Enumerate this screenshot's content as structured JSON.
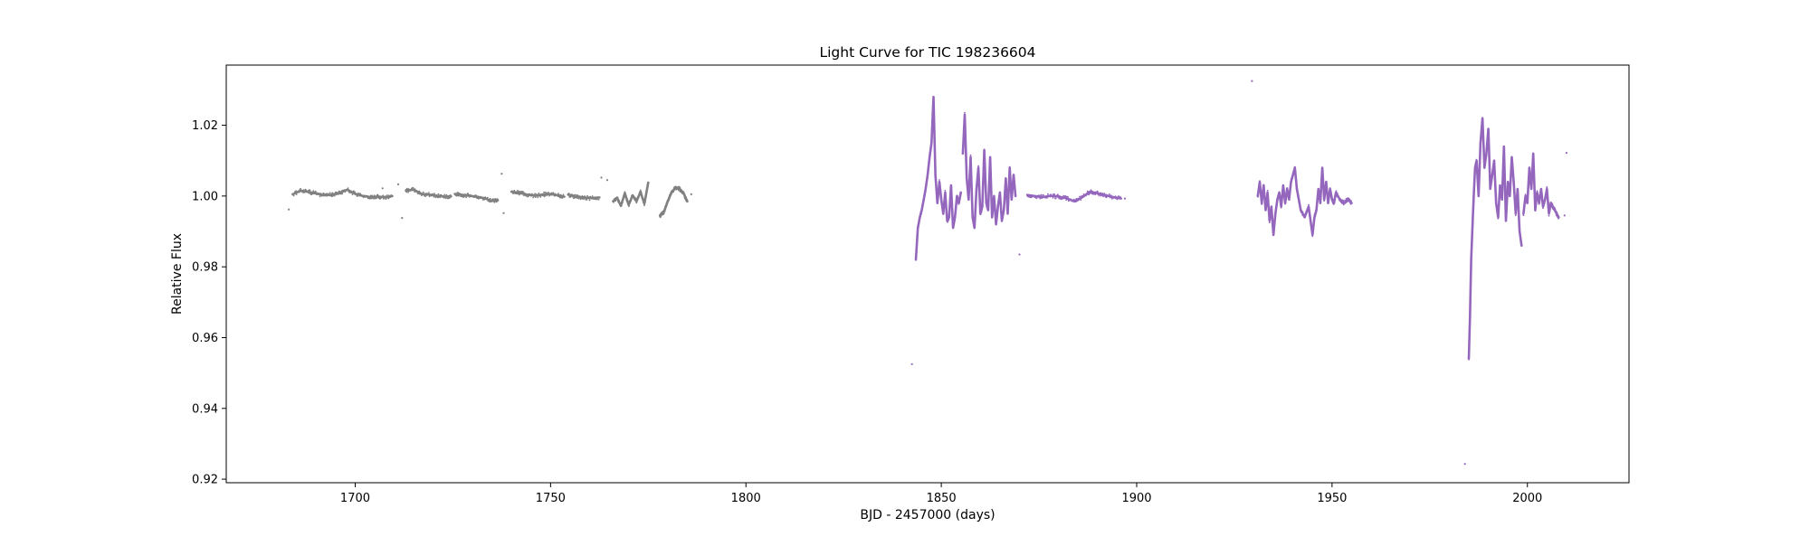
{
  "chart_data": {
    "type": "scatter",
    "title": "Light Curve for TIC 198236604",
    "xlabel": "BJD - 2457000 (days)",
    "ylabel": "Relative Flux",
    "xlim": [
      1667,
      2026
    ],
    "ylim": [
      0.919,
      1.037
    ],
    "xticks": [
      1700,
      1750,
      1800,
      1850,
      1900,
      1950,
      2000
    ],
    "yticks": [
      0.92,
      0.94,
      0.96,
      0.98,
      1.0,
      1.02
    ],
    "xtick_labels": [
      "1700",
      "1750",
      "1800",
      "1850",
      "1900",
      "1950",
      "2000"
    ],
    "ytick_labels": [
      "0.92",
      "0.94",
      "0.96",
      "0.98",
      "1.00",
      "1.02"
    ],
    "grid": false,
    "legend": "none",
    "series": [
      {
        "color": "#808080",
        "segments": [
          {
            "x": [
              1684,
              1686,
              1688,
              1690,
              1692,
              1694,
              1696,
              1698,
              1700,
              1702,
              1704,
              1706,
              1708,
              1709.5
            ],
            "y": [
              1.0005,
              1.0015,
              1.0012,
              1.0007,
              1.0002,
              1.0004,
              1.0009,
              1.0018,
              1.0006,
              1.0,
              0.9997,
              0.9998,
              0.9996,
              1.0
            ]
          },
          {
            "x": [
              1713,
              1715,
              1717,
              1719,
              1721,
              1723,
              1724.5
            ],
            "y": [
              1.0015,
              1.0018,
              1.0006,
              1.0004,
              1.0001,
              0.9998,
              0.9999
            ]
          },
          {
            "x": [
              1725.5,
              1727,
              1729,
              1731,
              1733,
              1735,
              1736.5
            ],
            "y": [
              1.0006,
              1.0004,
              1.0001,
              0.9998,
              0.9994,
              0.9986,
              0.9988
            ]
          },
          {
            "x": [
              1740,
              1742,
              1744,
              1746,
              1748,
              1750,
              1752,
              1753.5
            ],
            "y": [
              1.0012,
              1.0009,
              1.0004,
              1.0001,
              1.0004,
              1.0006,
              1.0002,
              0.9998
            ]
          },
          {
            "x": [
              1754.5,
              1756,
              1758,
              1760,
              1762.5
            ],
            "y": [
              1.0004,
              0.9998,
              0.9997,
              0.9994,
              0.9996
            ]
          },
          {
            "x": [
              1766,
              1767,
              1768,
              1769,
              1770,
              1771,
              1772,
              1773,
              1774,
              1775
            ],
            "y": [
              0.9985,
              0.9995,
              0.9972,
              1.0008,
              0.9975,
              1.0002,
              0.9985,
              1.0012,
              0.9978,
              1.0038
            ]
          },
          {
            "x": [
              1778,
              1779,
              1780,
              1781,
              1782,
              1783,
              1784,
              1785
            ],
            "y": [
              0.9945,
              0.9955,
              0.9985,
              1.0012,
              1.0023,
              1.002,
              1.0008,
              0.9985
            ]
          }
        ],
        "outliers": [
          {
            "x": [
              1683,
              1707,
              1711,
              1712,
              1737.5,
              1738,
              1763,
              1764.5,
              1786
            ],
            "y": [
              0.9962,
              1.0022,
              1.0033,
              0.9938,
              1.0063,
              0.9952,
              1.0052,
              1.0045,
              1.0005
            ]
          }
        ]
      },
      {
        "color": "#9467bd",
        "segments": [
          {
            "x": [
              1843.5,
              1844,
              1844.5,
              1845,
              1845.5,
              1846,
              1846.5,
              1847,
              1847.5,
              1848,
              1848.5,
              1849,
              1849.5,
              1850,
              1850.5,
              1851,
              1851.5,
              1852,
              1852.5,
              1853,
              1853.5,
              1854,
              1854.5,
              1855
            ],
            "y": [
              0.982,
              0.991,
              0.994,
              0.996,
              0.999,
              1.002,
              1.006,
              1.011,
              1.015,
              1.028,
              1.006,
              0.998,
              1.004,
              0.999,
              0.995,
              1.001,
              0.993,
              0.994,
              1.003,
              0.991,
              0.994,
              1.0,
              0.998,
              1.001
            ]
          },
          {
            "x": [
              1855.5,
              1856,
              1856.5,
              1857,
              1857.5,
              1858,
              1858.5,
              1859,
              1859.5,
              1860,
              1860.5,
              1861,
              1861.5,
              1862,
              1862.5,
              1863,
              1863.5,
              1864,
              1864.5,
              1865,
              1865.5,
              1866,
              1866.5,
              1867,
              1867.5,
              1868,
              1868.5,
              1869
            ],
            "y": [
              1.012,
              1.023,
              1.005,
              0.999,
              1.011,
              0.994,
              0.991,
              1.002,
              1.008,
              0.995,
              0.997,
              1.013,
              0.998,
              0.996,
              1.011,
              0.994,
              1.0,
              0.992,
              0.997,
              1.001,
              0.993,
              0.996,
              1.005,
              0.995,
              1.008,
              0.999,
              1.006,
              1.0
            ]
          },
          {
            "x": [
              1872,
              1874,
              1876,
              1878,
              1880,
              1882,
              1884,
              1886,
              1888,
              1890,
              1892,
              1894,
              1896
            ],
            "y": [
              1.0003,
              1.0,
              0.9997,
              1.0001,
              0.9998,
              0.9994,
              0.9985,
              0.9996,
              1.0012,
              1.0008,
              1.0002,
              0.9997,
              0.9993
            ]
          },
          {
            "x": [
              1931,
              1931.5,
              1932,
              1932.5,
              1933,
              1933.5,
              1934,
              1934.5,
              1935,
              1935.5,
              1936,
              1936.5,
              1937,
              1937.5,
              1938,
              1938.5,
              1939,
              1939.5,
              1940,
              1940.5,
              1941
            ],
            "y": [
              1.0,
              1.004,
              0.998,
              1.003,
              0.996,
              1.001,
              0.993,
              0.997,
              0.989,
              0.995,
              0.999,
              1.001,
              0.997,
              1.003,
              0.998,
              1.002,
              0.999,
              1.004,
              1.006,
              1.008,
              1.002
            ]
          },
          {
            "x": [
              1941,
              1942,
              1943,
              1944,
              1945,
              1945.5,
              1946,
              1946.5,
              1947,
              1947.5,
              1948,
              1948.5,
              1949,
              1949.5,
              1950,
              1950.5,
              1951,
              1952,
              1953,
              1954,
              1955
            ],
            "y": [
              1.002,
              0.996,
              0.994,
              0.997,
              0.989,
              0.994,
              0.996,
              1.002,
              0.998,
              1.008,
              0.999,
              1.004,
              0.998,
              1.002,
              0.999,
              0.998,
              1.001,
              0.999,
              0.998,
              0.999,
              0.998
            ]
          },
          {
            "x": [
              1985,
              1985.3,
              1985.6,
              1986,
              1986.3,
              1986.6,
              1987,
              1987.5,
              1988,
              1988.5,
              1989,
              1989.5,
              1990,
              1990.5,
              1991,
              1991.5,
              1992,
              1992.5,
              1993,
              1993.5,
              1994,
              1994.5,
              1995,
              1995.5,
              1996,
              1996.5,
              1997,
              1997.5,
              1998,
              1998.5
            ],
            "y": [
              0.954,
              0.966,
              0.982,
              0.993,
              1.001,
              1.008,
              1.01,
              1.0,
              1.015,
              1.022,
              1.008,
              1.012,
              1.019,
              1.002,
              1.006,
              1.01,
              0.998,
              0.994,
              1.003,
              0.999,
              1.014,
              0.993,
              1.004,
              1.0,
              1.011,
              1.004,
              0.995,
              1.002,
              0.99,
              0.986
            ]
          },
          {
            "x": [
              1999,
              1999.5,
              2000,
              2000.5,
              2001,
              2001.5,
              2002,
              2002.5,
              2003,
              2003.5,
              2004,
              2004.5,
              2005,
              2005.5,
              2006,
              2006.5,
              2007,
              2007.5,
              2008
            ],
            "y": [
              0.995,
              1.0,
              0.998,
              1.008,
              1.002,
              1.012,
              0.996,
              1.001,
              0.998,
              1.002,
              0.997,
              0.999,
              1.002,
              0.995,
              0.998,
              0.997,
              0.996,
              0.995,
              0.994
            ]
          }
        ],
        "outliers": [
          {
            "x": [
              1842.5,
              1870,
              1897,
              1929.5,
              1984,
              2010,
              2009.5
            ],
            "y": [
              0.9525,
              0.9835,
              0.9993,
              1.0325,
              0.9243,
              1.0122,
              0.9945
            ]
          }
        ]
      }
    ]
  }
}
